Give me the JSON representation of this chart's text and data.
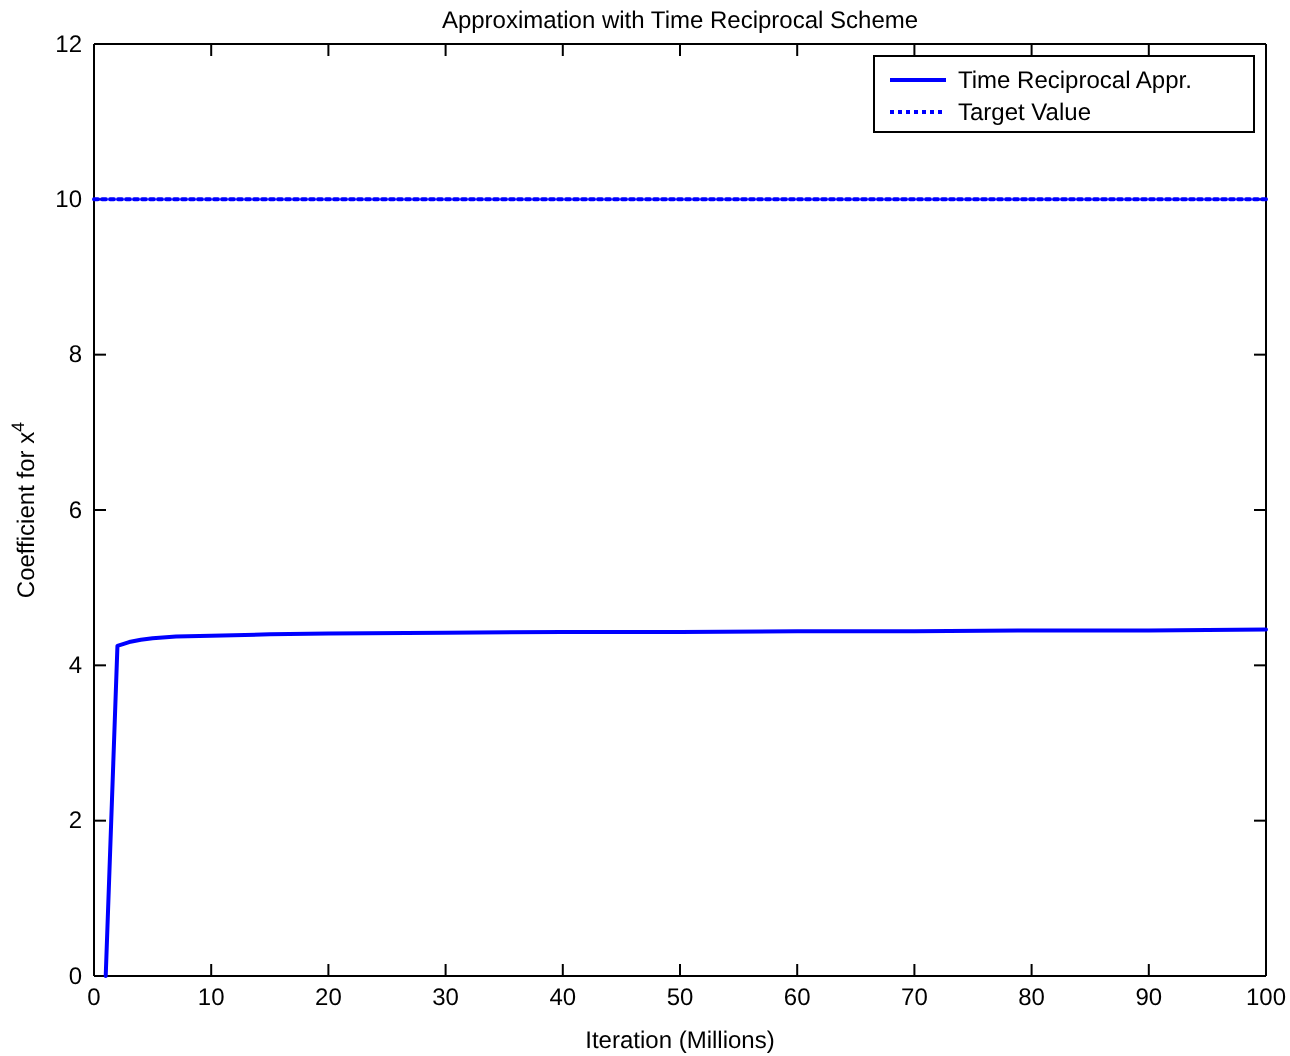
{
  "chart_data": {
    "type": "line",
    "title": "Approximation with Time Reciprocal Scheme",
    "xlabel": "Iteration (Millions)",
    "ylabel": "Coefficient for x$^{4}$",
    "xlim": [
      0,
      100
    ],
    "xticks": [
      0,
      10,
      20,
      30,
      40,
      50,
      60,
      70,
      80,
      90,
      100
    ],
    "ylim": [
      0,
      12
    ],
    "yticks": [
      0,
      2,
      4,
      6,
      8,
      10,
      12
    ],
    "grid": false,
    "legend": "top right",
    "series": [
      {
        "name": "Time Reciprocal Appr.",
        "color": "#0000ff",
        "line_style": "solid",
        "x": [
          1,
          2,
          3,
          4,
          5,
          7,
          10,
          15,
          20,
          30,
          40,
          50,
          60,
          70,
          80,
          90,
          100
        ],
        "values": [
          0,
          4.25,
          4.3,
          4.33,
          4.35,
          4.37,
          4.38,
          4.4,
          4.41,
          4.42,
          4.43,
          4.43,
          4.44,
          4.44,
          4.45,
          4.45,
          4.46
        ]
      },
      {
        "name": "Target Value",
        "color": "#0000ff",
        "line_style": "dotted",
        "x": [
          0,
          100
        ],
        "values": [
          10,
          10
        ]
      }
    ]
  }
}
